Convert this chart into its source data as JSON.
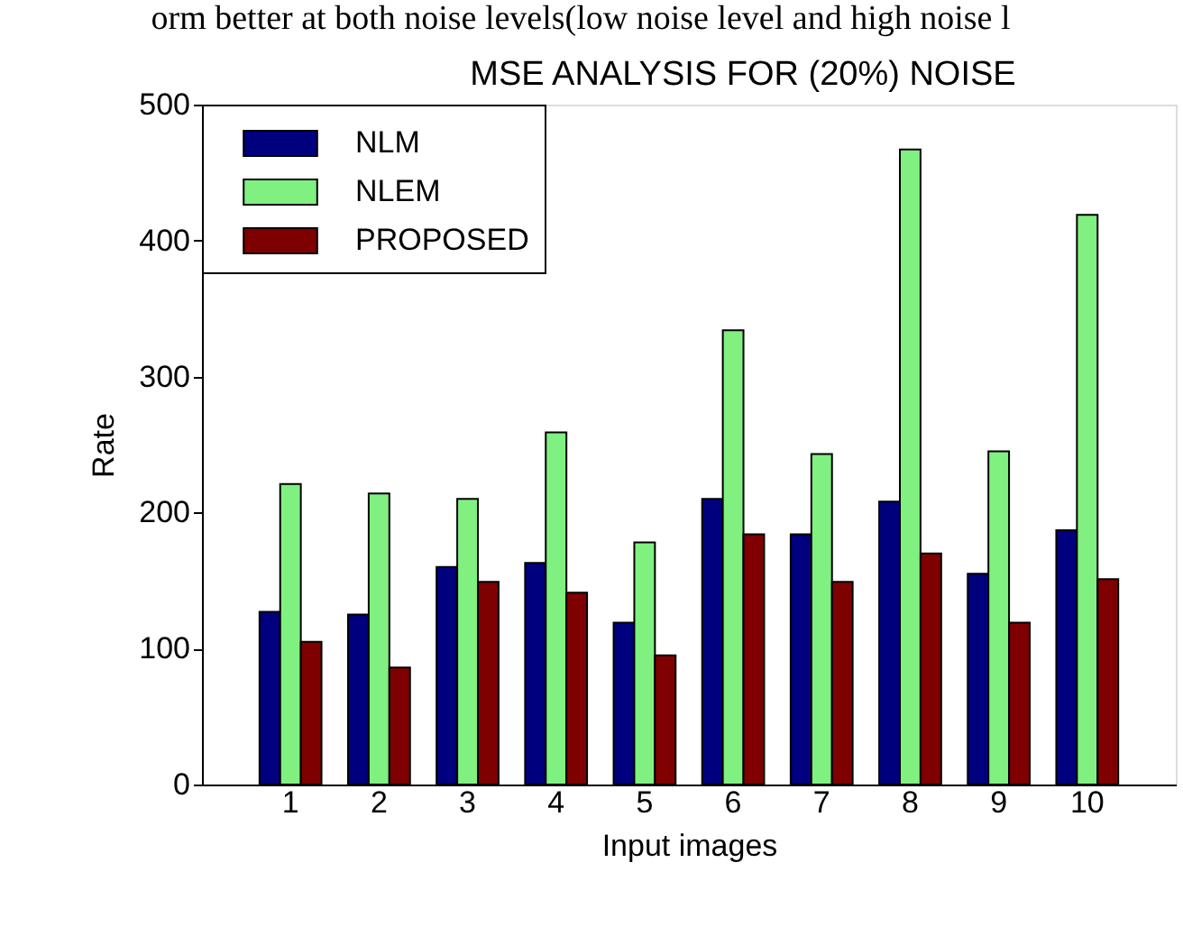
{
  "chart_data": {
    "type": "bar",
    "title": "MSE ANALYSIS FOR (20%) NOISE",
    "annotations": [
      "orm better at both noise levels(low noise level and high noise l"
    ],
    "xlabel": "Input images",
    "ylabel": "Rate",
    "categories": [
      "1",
      "2",
      "3",
      "4",
      "5",
      "6",
      "7",
      "8",
      "9",
      "10"
    ],
    "series": [
      {
        "name": "NLM",
        "color": "#00007f",
        "values": [
          127,
          125,
          160,
          163,
          119,
          210,
          184,
          208,
          155,
          187
        ]
      },
      {
        "name": "NLEM",
        "color": "#80f080",
        "values": [
          221,
          214,
          210,
          259,
          178,
          334,
          243,
          467,
          245,
          419
        ]
      },
      {
        "name": "PROPOSED",
        "color": "#7f0000",
        "values": [
          105,
          86,
          149,
          141,
          95,
          184,
          149,
          170,
          119,
          151
        ]
      }
    ],
    "ylim": [
      0,
      500
    ],
    "yticks": [
      0,
      100,
      200,
      300,
      400,
      500
    ],
    "grid": false,
    "legend": "top left"
  }
}
